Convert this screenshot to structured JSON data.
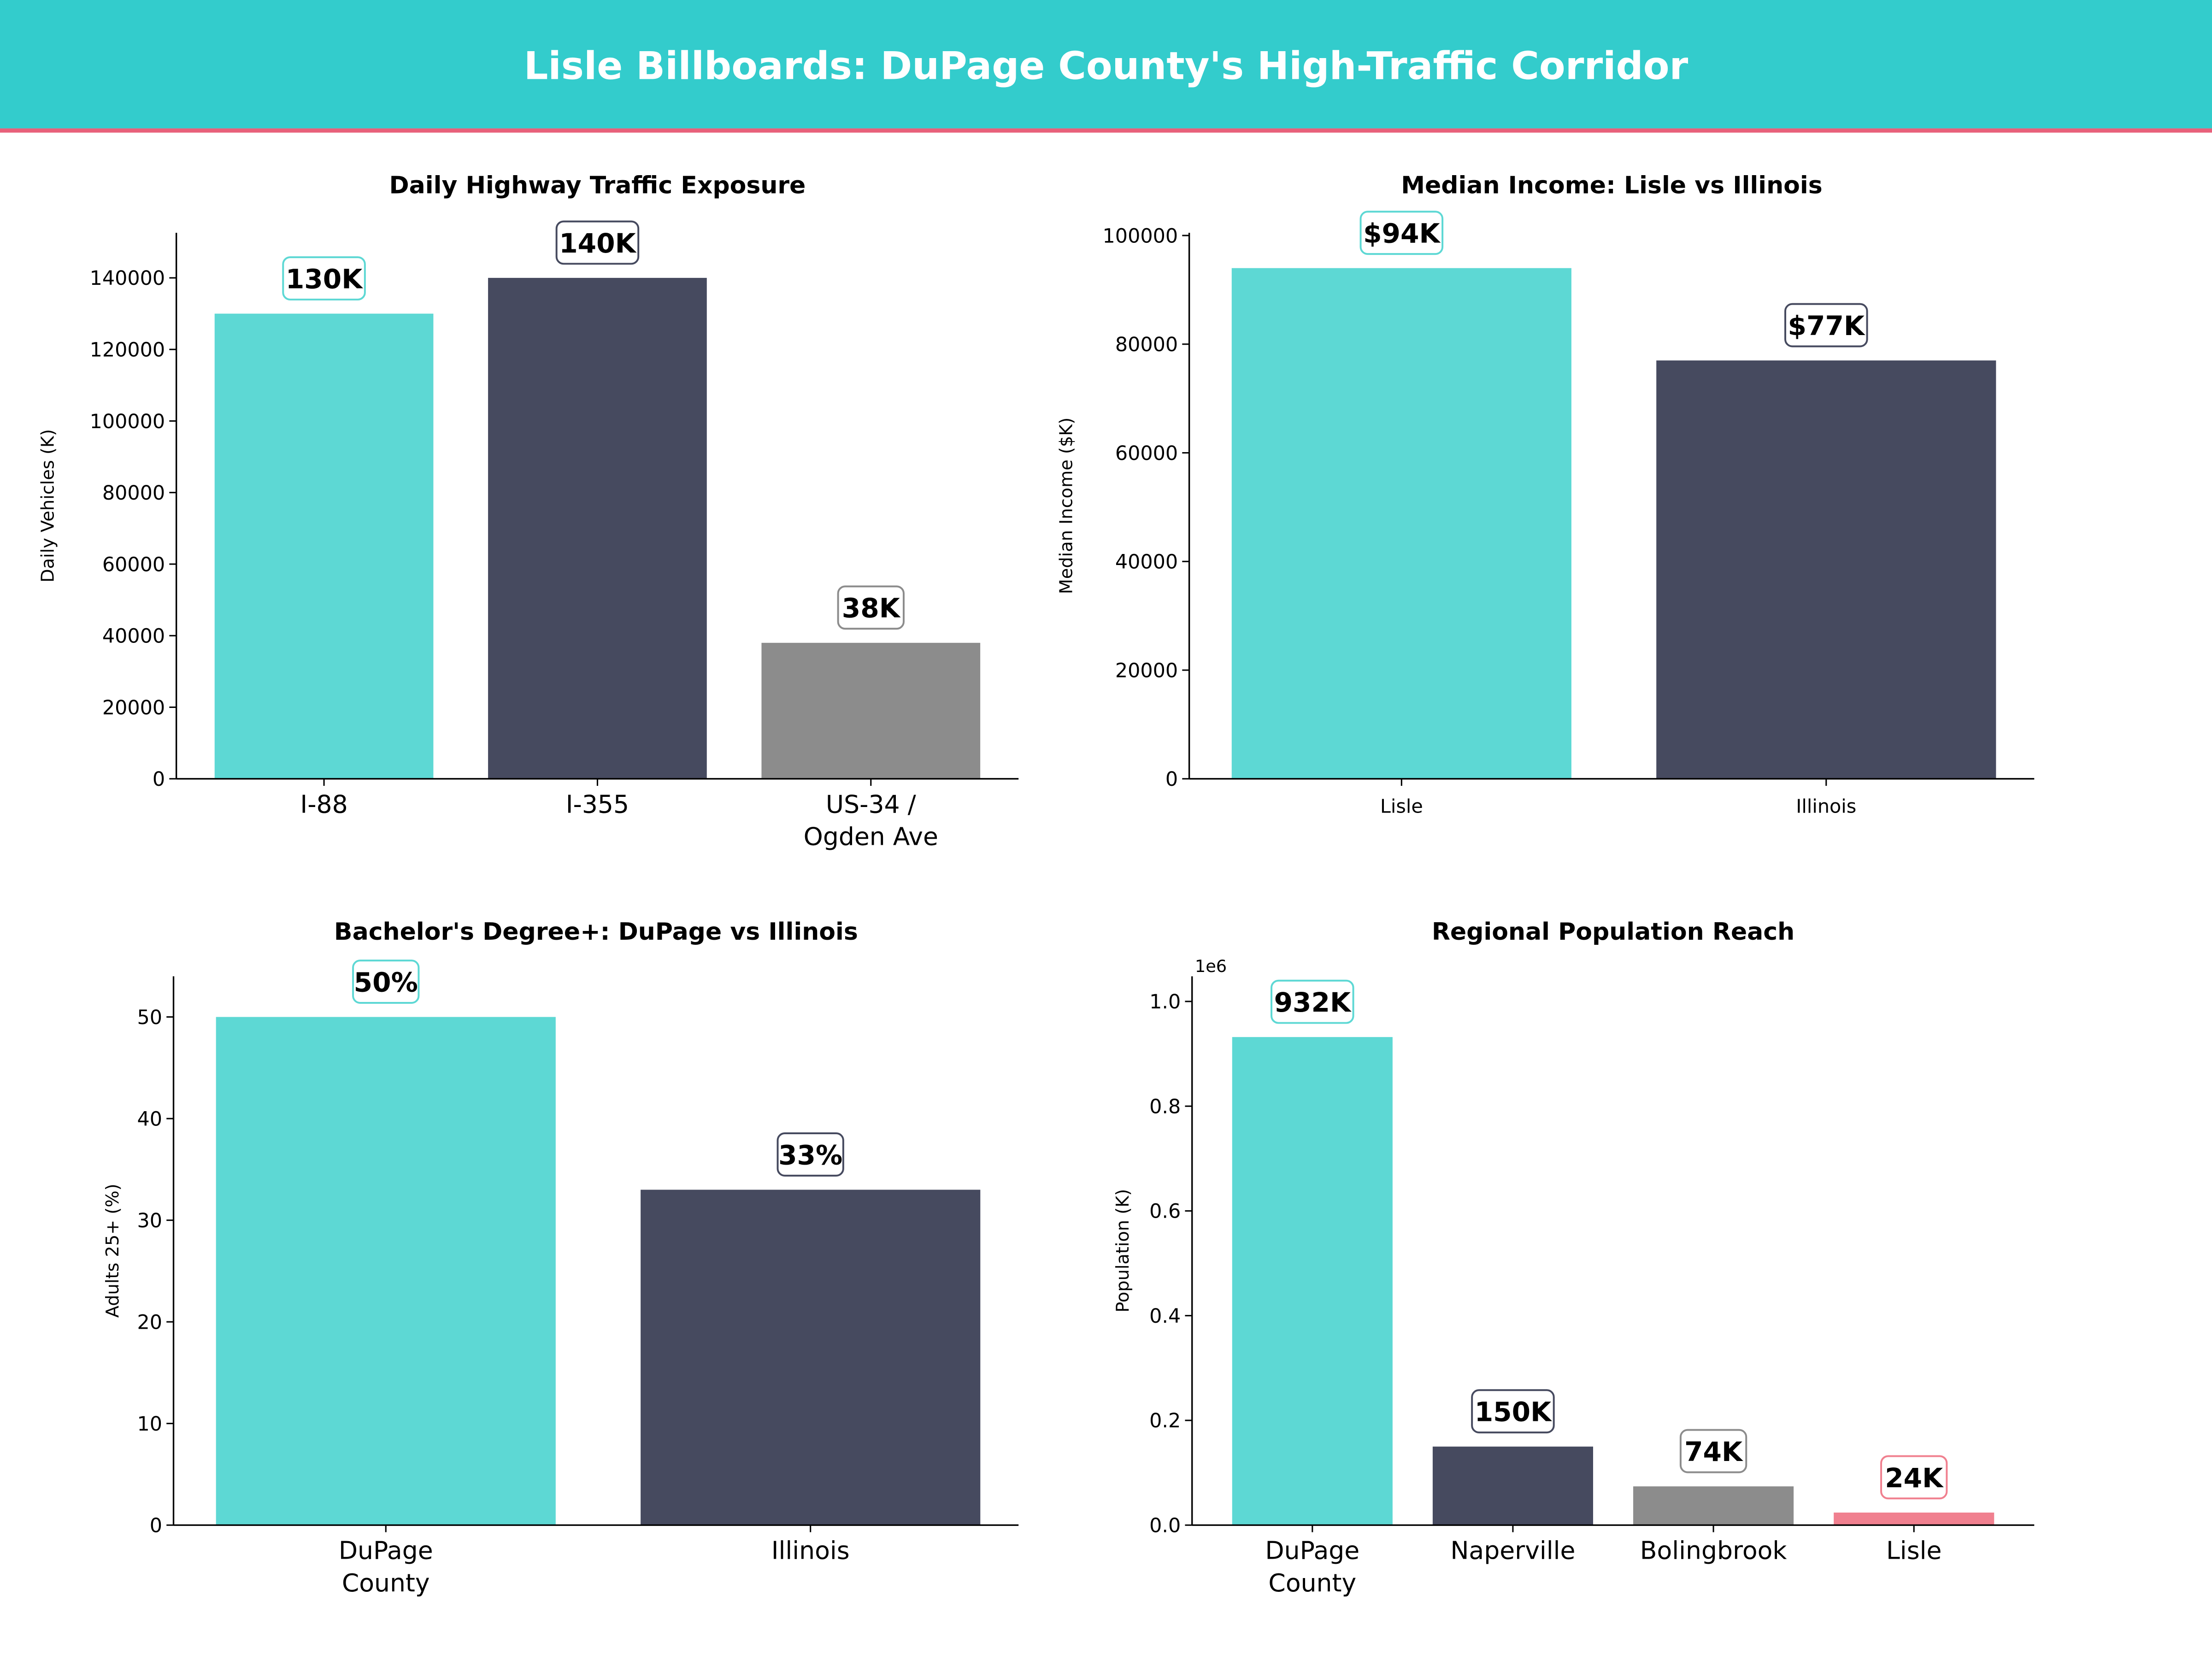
{
  "header": {
    "title": "Lisle Billboards: DuPage County's High-Traffic Corridor",
    "background": "#33cccc",
    "accent_line": "#e8607a"
  },
  "colors": {
    "teal": "#5dd8d4",
    "navy": "#464a5f",
    "gray": "#8c8c8c",
    "pink": "#f0808f"
  },
  "chart_data": [
    {
      "type": "bar",
      "title": "Daily Highway Traffic Exposure",
      "ylabel": "Daily Vehicles (K)",
      "categories": [
        "I-88",
        "I-355",
        "US-34 /\nOgden Ave"
      ],
      "values": [
        130000,
        140000,
        38000
      ],
      "data_labels": [
        "130K",
        "140K",
        "38K"
      ],
      "bar_colors": [
        "#5dd8d4",
        "#464a5f",
        "#8c8c8c"
      ],
      "ylim": [
        0,
        152600
      ],
      "yticks": [
        0,
        20000,
        40000,
        60000,
        80000,
        100000,
        120000,
        140000
      ],
      "ytick_labels": [
        "0",
        "20000",
        "40000",
        "60000",
        "80000",
        "100000",
        "120000",
        "140000"
      ],
      "offset_label": "",
      "grid": false
    },
    {
      "type": "bar",
      "title": "Median Income: Lisle vs Illinois",
      "ylabel": "Median Income ($K)",
      "categories": [
        "Lisle",
        "Illinois"
      ],
      "values": [
        94000,
        77000
      ],
      "data_labels": [
        "$94K",
        "$77K"
      ],
      "bar_colors": [
        "#5dd8d4",
        "#464a5f"
      ],
      "ylim": [
        0,
        100500
      ],
      "yticks": [
        0,
        20000,
        40000,
        60000,
        80000,
        100000
      ],
      "ytick_labels": [
        "0",
        "20000",
        "40000",
        "60000",
        "80000",
        "100000"
      ],
      "offset_label": "",
      "grid": false
    },
    {
      "type": "bar",
      "title": "Bachelor's Degree+: DuPage vs Illinois",
      "ylabel": "Adults 25+ (%)",
      "categories": [
        "DuPage\nCounty",
        "Illinois"
      ],
      "values": [
        50,
        33
      ],
      "data_labels": [
        "50%",
        "33%"
      ],
      "bar_colors": [
        "#5dd8d4",
        "#464a5f"
      ],
      "ylim": [
        0,
        54
      ],
      "yticks": [
        0,
        10,
        20,
        30,
        40,
        50
      ],
      "ytick_labels": [
        "0",
        "10",
        "20",
        "30",
        "40",
        "50"
      ],
      "offset_label": "",
      "grid": false
    },
    {
      "type": "bar",
      "title": "Regional Population Reach",
      "ylabel": "Population (K)",
      "categories": [
        "DuPage\nCounty",
        "Naperville",
        "Bolingbrook",
        "Lisle"
      ],
      "values": [
        932000,
        150000,
        74000,
        24000
      ],
      "data_labels": [
        "932K",
        "150K",
        "74K",
        "24K"
      ],
      "bar_colors": [
        "#5dd8d4",
        "#464a5f",
        "#8c8c8c",
        "#f0808f"
      ],
      "ylim": [
        0,
        1048000
      ],
      "yticks": [
        0,
        200000,
        400000,
        600000,
        800000,
        1000000
      ],
      "ytick_labels": [
        "0.0",
        "0.2",
        "0.4",
        "0.6",
        "0.8",
        "1.0"
      ],
      "offset_label": "1e6",
      "grid": false
    }
  ]
}
